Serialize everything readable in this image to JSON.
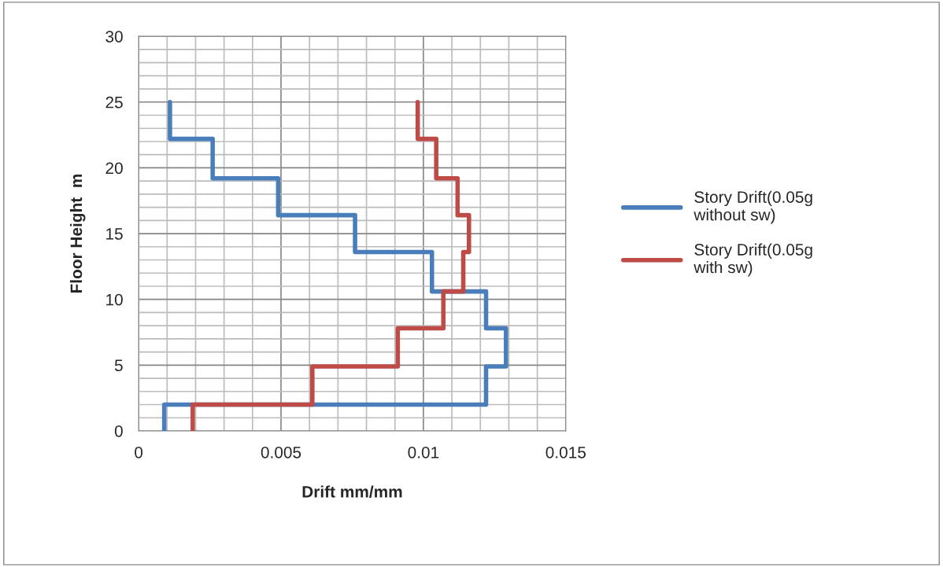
{
  "chart_data": {
    "type": "line",
    "xlabel": "Drift mm/mm",
    "ylabel": "Floor Height  m",
    "xlim": [
      0,
      0.015
    ],
    "xticks": [
      0,
      0.005,
      0.01,
      0.015
    ],
    "ylim": [
      0,
      30
    ],
    "yticks": [
      0,
      5,
      10,
      15,
      20,
      25,
      30
    ],
    "grid": true,
    "legend": "right",
    "marker": "none",
    "line_style": "solid",
    "series": [
      {
        "name": "Story Drift(0.05g without sw)",
        "color": "#4a7ebb",
        "x": [
          0.0009,
          0.0009,
          0.0122,
          0.0122,
          0.0129,
          0.0129,
          0.0122,
          0.0122,
          0.0103,
          0.0103,
          0.0076,
          0.0076,
          0.0049,
          0.0049,
          0.0026,
          0.0026,
          0.0011,
          0.0011
        ],
        "values": [
          0,
          2,
          2,
          4.9,
          4.9,
          7.8,
          7.8,
          10.6,
          10.6,
          13.6,
          13.6,
          16.4,
          16.4,
          19.2,
          19.2,
          22.2,
          22.2,
          25
        ]
      },
      {
        "name": "Story Drift(0.05g with sw)",
        "color": "#be4b48",
        "x": [
          0.0019,
          0.0019,
          0.0061,
          0.0061,
          0.0091,
          0.0091,
          0.0107,
          0.0107,
          0.0114,
          0.0114,
          0.0116,
          0.0116,
          0.0112,
          0.0112,
          0.01045,
          0.01045,
          0.0098,
          0.0098
        ],
        "values": [
          0,
          2,
          2,
          4.9,
          4.9,
          7.8,
          7.8,
          10.6,
          10.6,
          13.6,
          13.6,
          16.4,
          16.4,
          19.2,
          19.2,
          22.2,
          22.2,
          25
        ]
      }
    ]
  }
}
